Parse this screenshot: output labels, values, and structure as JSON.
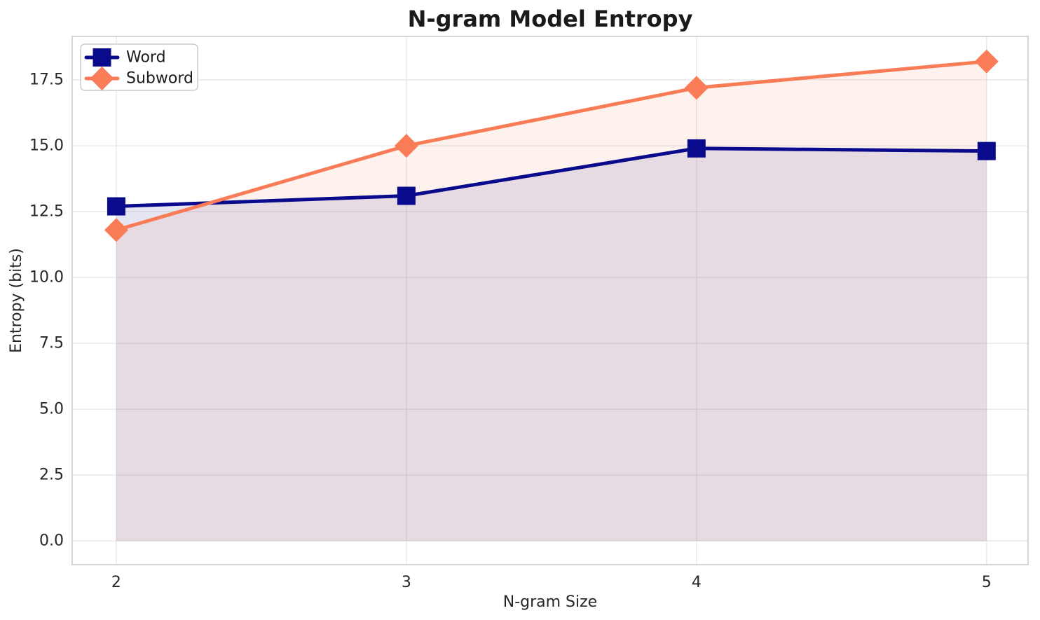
{
  "figure": {
    "background": "#FFFFFF",
    "title_color": "#1A1A1A",
    "text_color": "#262626",
    "grid_color": "#E9E9E9",
    "spine_color": "#D5D5D5",
    "legend": {
      "border_color": "#CCCCCC",
      "background": "#FFFFFF"
    }
  },
  "chart_data": {
    "type": "line",
    "title": "N-gram Model Entropy",
    "xlabel": "N-gram Size",
    "ylabel": "Entropy (bits)",
    "x": [
      2,
      3,
      4,
      5
    ],
    "xtick_labels": [
      "2",
      "3",
      "4",
      "5"
    ],
    "yticks": [
      0,
      2.5,
      5,
      7.5,
      10,
      12.5,
      15,
      17.5
    ],
    "ytick_labels": [
      "0.0",
      "2.5",
      "5.0",
      "7.5",
      "10.0",
      "12.5",
      "15.0",
      "17.5"
    ],
    "xlim": [
      1.848,
      5.143
    ],
    "ylim": [
      -0.9,
      19.15
    ],
    "grid": true,
    "legend_position": "upper left",
    "fill_alpha": 0.1,
    "fill_baseline": 0,
    "series": [
      {
        "name": "Word",
        "values": [
          12.7,
          13.1,
          14.9,
          14.8
        ],
        "color": "#0A0A8C",
        "marker": "square",
        "line_width": 5
      },
      {
        "name": "Subword",
        "values": [
          11.8,
          15.0,
          17.2,
          18.2
        ],
        "color": "#F97C57",
        "marker": "diamond",
        "line_width": 5
      }
    ]
  }
}
